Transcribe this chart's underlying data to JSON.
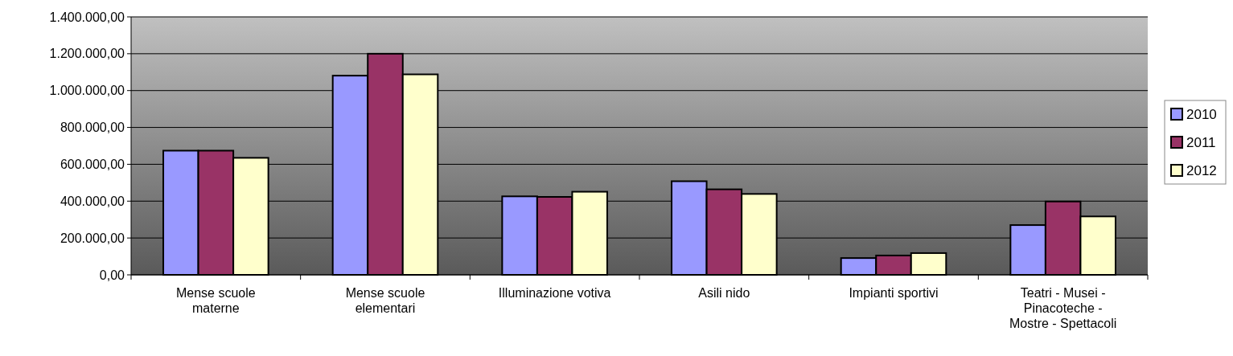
{
  "chart_data": {
    "type": "bar",
    "categories": [
      "Mense scuole materne",
      "Mense scuole elementari",
      "Illuminazione votiva",
      "Asili nido",
      "Impianti sportivi",
      "Teatri - Musei - Pinacoteche - Mostre - Spettacoli"
    ],
    "series": [
      {
        "name": "2010",
        "color": "#9999ff",
        "values": [
          674000,
          1081000,
          426000,
          508000,
          91000,
          270000
        ]
      },
      {
        "name": "2011",
        "color": "#993366",
        "values": [
          674000,
          1200000,
          423000,
          464000,
          105000,
          398000
        ]
      },
      {
        "name": "2012",
        "color": "#ffffcc",
        "values": [
          635000,
          1088000,
          451000,
          439000,
          118000,
          317000
        ]
      }
    ],
    "ylim": [
      0,
      1400000
    ],
    "yticks": [
      {
        "value": 0,
        "label": "0,00"
      },
      {
        "value": 200000,
        "label": "200.000,00"
      },
      {
        "value": 400000,
        "label": "400.000,00"
      },
      {
        "value": 600000,
        "label": "600.000,00"
      },
      {
        "value": 800000,
        "label": "800.000,00"
      },
      {
        "value": 1000000,
        "label": "1.000.000,00"
      },
      {
        "value": 1200000,
        "label": "1.200.000,00"
      },
      {
        "value": 1400000,
        "label": "1.400.000,00"
      }
    ],
    "grid": "y",
    "legend": "right"
  }
}
